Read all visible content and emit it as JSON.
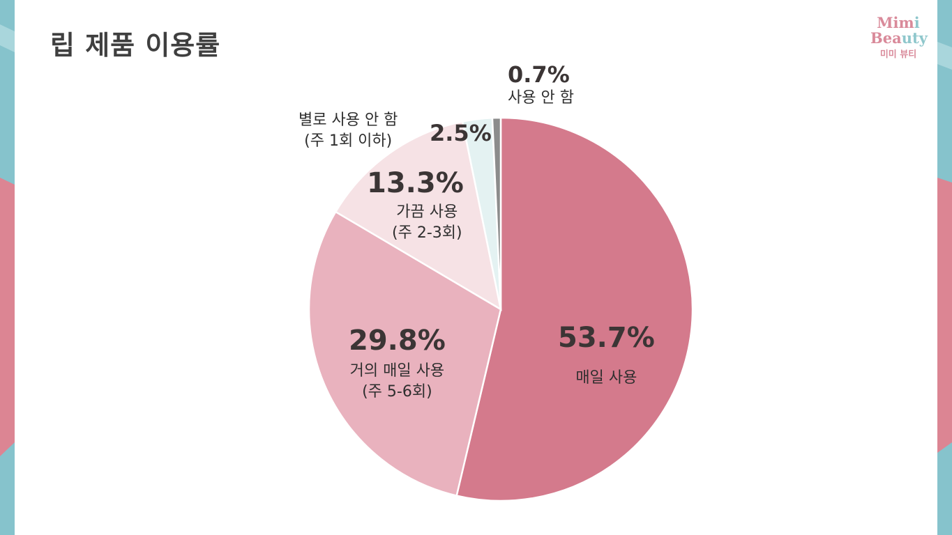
{
  "title": "립 제품 이용률",
  "logo": {
    "line1_a": "Mim",
    "line1_b": "i",
    "line2_a": "Bea",
    "line2_b": "uty",
    "korean": "미미 뷰티"
  },
  "colors": {
    "strip_teal": "#86c3cc",
    "strip_light": "#a9d6dc",
    "strip_pink": "#dc8593"
  },
  "chart_data": {
    "type": "pie",
    "title": "립 제품 이용률",
    "start": "top",
    "direction": "clockwise",
    "slices": [
      {
        "label": "매일 사용",
        "sublabel": "",
        "value": 53.7,
        "pct_label": "53.7%",
        "color": "#d47a8c"
      },
      {
        "label": "거의 매일 사용",
        "sublabel": "(주 5-6회)",
        "value": 29.8,
        "pct_label": "29.8%",
        "color": "#e9b2be"
      },
      {
        "label": "가끔 사용",
        "sublabel": "(주 2-3회)",
        "value": 13.3,
        "pct_label": "13.3%",
        "color": "#f6e2e5"
      },
      {
        "label": "별로 사용 안 함",
        "sublabel": "(주 1회 이하)",
        "value": 2.5,
        "pct_label": "2.5%",
        "color": "#e4f2f2"
      },
      {
        "label": "사용 안 함",
        "sublabel": "",
        "value": 0.7,
        "pct_label": "0.7%",
        "color": "#8c8c8c"
      }
    ]
  }
}
